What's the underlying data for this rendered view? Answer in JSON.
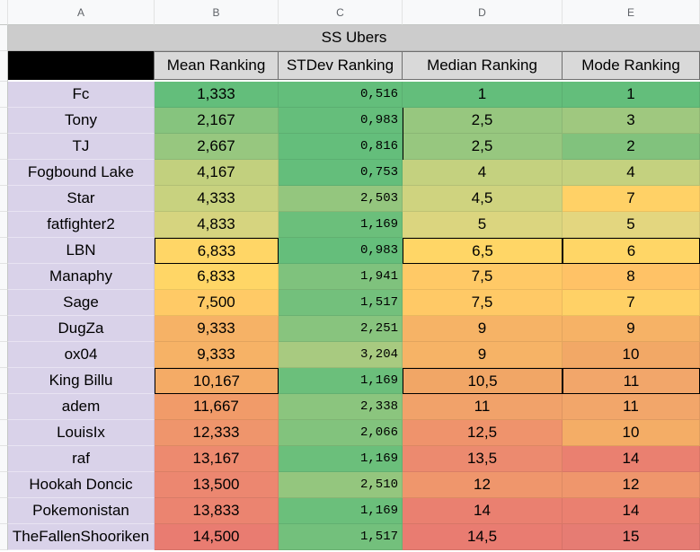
{
  "columns": [
    "A",
    "B",
    "C",
    "D",
    "E"
  ],
  "sheet_title": "SS Ubers",
  "headers": [
    "Mean Ranking",
    "STDev Ranking",
    "Median Ranking",
    "Mode Ranking"
  ],
  "rows": [
    {
      "name": "Fc",
      "mean": "1,333",
      "stdev": "0,516",
      "median": "1",
      "mode": "1",
      "colors": [
        "#63be7b",
        "#63be7b",
        "#63be7b",
        "#63be7b"
      ]
    },
    {
      "name": "Tony",
      "mean": "2,167",
      "stdev": "0,983",
      "median": "2,5",
      "mode": "3",
      "colors": [
        "#86c47e",
        "#65be7b",
        "#97c77f",
        "#9fc87f"
      ]
    },
    {
      "name": "TJ",
      "mean": "2,667",
      "stdev": "0,816",
      "median": "2,5",
      "mode": "2",
      "colors": [
        "#97c77f",
        "#64be7b",
        "#97c77f",
        "#81c27d"
      ]
    },
    {
      "name": "Fogbound Lake",
      "mean": "4,167",
      "stdev": "0,753",
      "median": "4",
      "mode": "4",
      "colors": [
        "#c2d07e",
        "#64be7b",
        "#c4d17f",
        "#c4d17f"
      ]
    },
    {
      "name": "Star",
      "mean": "4,333",
      "stdev": "2,503",
      "median": "4,5",
      "mode": "7",
      "colors": [
        "#c8d27f",
        "#94c67e",
        "#cfd37f",
        "#ffd166"
      ]
    },
    {
      "name": "fatfighter2",
      "mean": "4,833",
      "stdev": "1,169",
      "median": "5",
      "mode": "5",
      "colors": [
        "#d6d47f",
        "#6bbf7b",
        "#dbd57f",
        "#e3d67f"
      ]
    },
    {
      "name": "LBN",
      "mean": "6,833",
      "stdev": "0,983",
      "median": "6,5",
      "mode": "6",
      "colors": [
        "#ffd666",
        "#65be7b",
        "#ffd666",
        "#ffd666"
      ]
    },
    {
      "name": "Manaphy",
      "mean": "6,833",
      "stdev": "1,941",
      "median": "7,5",
      "mode": "8",
      "colors": [
        "#ffd666",
        "#7fc27d",
        "#ffc966",
        "#ffc266"
      ]
    },
    {
      "name": "Sage",
      "mean": "7,500",
      "stdev": "1,517",
      "median": "7,5",
      "mode": "7",
      "colors": [
        "#ffca66",
        "#73c07c",
        "#ffc966",
        "#ffd166"
      ]
    },
    {
      "name": "DugZa",
      "mean": "9,333",
      "stdev": "2,251",
      "median": "9",
      "mode": "9",
      "colors": [
        "#f6b266",
        "#88c47e",
        "#f6b366",
        "#f6b266"
      ]
    },
    {
      "name": "ox04",
      "mean": "9,333",
      "stdev": "3,204",
      "median": "9",
      "mode": "10",
      "colors": [
        "#f6b266",
        "#a8ca80",
        "#f6b366",
        "#f2a866"
      ]
    },
    {
      "name": "King Billu",
      "mean": "10,167",
      "stdev": "1,169",
      "median": "10,5",
      "mode": "11",
      "colors": [
        "#f4ab66",
        "#6bbf7b",
        "#f1a666",
        "#f2a66a"
      ]
    },
    {
      "name": "adem",
      "mean": "11,667",
      "stdev": "2,338",
      "median": "11",
      "mode": "11",
      "colors": [
        "#f19b69",
        "#8bc57e",
        "#f1a26a",
        "#f2a66a"
      ]
    },
    {
      "name": "LouisIx",
      "mean": "12,333",
      "stdev": "2,066",
      "median": "12,5",
      "mode": "10",
      "colors": [
        "#ef956c",
        "#82c37d",
        "#ef936c",
        "#f4ad66"
      ]
    },
    {
      "name": "raf",
      "mean": "13,167",
      "stdev": "1,169",
      "median": "13,5",
      "mode": "14",
      "colors": [
        "#ed8a6f",
        "#6bbf7b",
        "#ec8a6f",
        "#ea8070"
      ]
    },
    {
      "name": "Hookah Doncic",
      "mean": "13,500",
      "stdev": "2,510",
      "median": "12",
      "mode": "12",
      "colors": [
        "#ec8770",
        "#94c67e",
        "#ef966c",
        "#ef966c"
      ]
    },
    {
      "name": "Pokemonistan",
      "mean": "13,833",
      "stdev": "1,169",
      "median": "14",
      "mode": "14",
      "colors": [
        "#eb8470",
        "#6bbf7b",
        "#ea8070",
        "#ea8070"
      ]
    },
    {
      "name": "TheFallenShooriken",
      "mean": "14,500",
      "stdev": "1,517",
      "median": "14,5",
      "mode": "15",
      "colors": [
        "#e97c71",
        "#73c07c",
        "#e97c71",
        "#e67c73"
      ]
    }
  ],
  "boxed_rows": [
    6,
    11
  ]
}
